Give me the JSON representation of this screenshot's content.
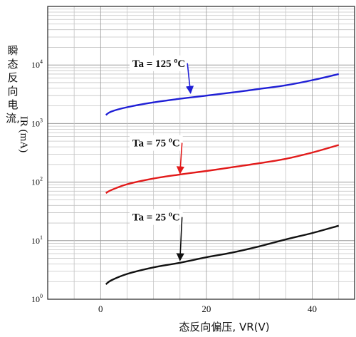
{
  "chart_data": {
    "type": "line",
    "title": "",
    "xlabel": "态反向偏压, VR(V)",
    "ylabel_cjk": "瞬态反向电流,",
    "ylabel_latin": "IR (mA)",
    "xlim": [
      -10,
      48
    ],
    "ylim": [
      1,
      100000
    ],
    "y_scale": "log",
    "x_ticks": [
      0,
      20,
      40
    ],
    "y_ticks": [
      {
        "value": 1,
        "base": "10",
        "exp": "0"
      },
      {
        "value": 10,
        "base": "10",
        "exp": "1"
      },
      {
        "value": 100,
        "base": "10",
        "exp": "2"
      },
      {
        "value": 1000,
        "base": "10",
        "exp": "3"
      },
      {
        "value": 10000,
        "base": "10",
        "exp": "4"
      }
    ],
    "grid": true,
    "series": [
      {
        "name": "Ta = 125 °C",
        "color": "#1f1fd6",
        "x": [
          1,
          2,
          5,
          10,
          15,
          20,
          25,
          30,
          35,
          40,
          45
        ],
        "y": [
          1400,
          1600,
          1900,
          2300,
          2650,
          3000,
          3400,
          3900,
          4500,
          5500,
          7000
        ]
      },
      {
        "name": "Ta = 75 °C",
        "color": "#e21a1a",
        "x": [
          1,
          2,
          5,
          10,
          15,
          20,
          25,
          30,
          35,
          40,
          45
        ],
        "y": [
          65,
          73,
          92,
          115,
          135,
          155,
          180,
          210,
          250,
          320,
          430
        ]
      },
      {
        "name": "Ta = 25 °C",
        "color": "#111111",
        "x": [
          1,
          2,
          5,
          10,
          15,
          20,
          25,
          30,
          35,
          40,
          45
        ],
        "y": [
          1.8,
          2.1,
          2.7,
          3.5,
          4.2,
          5.2,
          6.3,
          8,
          10.5,
          13.5,
          18
        ]
      }
    ],
    "annotations": [
      {
        "series": 0,
        "label_prefix": "Ta = 125 ",
        "label_sup": "o",
        "label_suffix": "C",
        "label_x": 6,
        "label_y": 11000,
        "arrow_from": [
          11,
          11000
        ],
        "arrow_to": [
          17,
          3300
        ]
      },
      {
        "series": 1,
        "label_prefix": "Ta = 75 ",
        "label_sup": "o",
        "label_suffix": "C",
        "label_x": 6,
        "label_y": 480,
        "arrow_from": [
          11,
          480
        ],
        "arrow_to": [
          15,
          140
        ]
      },
      {
        "series": 2,
        "label_prefix": "Ta = 25 ",
        "label_sup": "o",
        "label_suffix": "C",
        "label_x": 6,
        "label_y": 26,
        "arrow_from": [
          11,
          26
        ],
        "arrow_to": [
          15,
          4.6
        ]
      }
    ]
  }
}
